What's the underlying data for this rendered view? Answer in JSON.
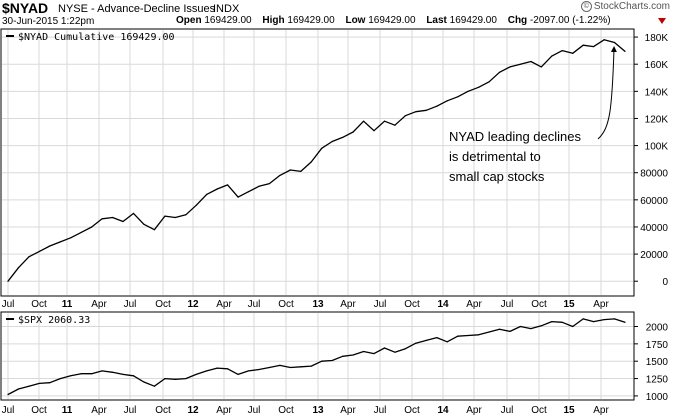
{
  "header": {
    "symbol": "$NYAD",
    "name": "NYSE - Advance-Decline Issues",
    "exchange": "INDX",
    "brand": "StockCharts.com",
    "date": "30-Jun-2015 1:22pm",
    "open_label": "Open",
    "open": "169429.00",
    "high_label": "High",
    "high": "169429.00",
    "low_label": "Low",
    "low": "169429.00",
    "last_label": "Last",
    "last": "169429.00",
    "chg_label": "Chg",
    "chg": "-2097.00 (-1.22%)",
    "chg_color": "#c00000"
  },
  "chart_data": [
    {
      "type": "line",
      "legend": "$NYAD Cumulative 169429.00",
      "x": [
        "Jul 2010",
        "Aug",
        "Sep",
        "Oct",
        "Nov",
        "Dec",
        "Jan 2011",
        "Feb",
        "Mar",
        "Apr",
        "May",
        "Jun",
        "Jul",
        "Aug",
        "Sep",
        "Oct",
        "Nov",
        "Dec",
        "Jan 2012",
        "Feb",
        "Mar",
        "Apr",
        "May",
        "Jun",
        "Jul",
        "Aug",
        "Sep",
        "Oct",
        "Nov",
        "Dec",
        "Jan 2013",
        "Feb",
        "Mar",
        "Apr",
        "May",
        "Jun",
        "Jul",
        "Aug",
        "Sep",
        "Oct",
        "Nov",
        "Dec",
        "Jan 2014",
        "Feb",
        "Mar",
        "Apr",
        "May",
        "Jun",
        "Jul",
        "Aug",
        "Sep",
        "Oct",
        "Nov",
        "Dec",
        "Jan 2015",
        "Feb",
        "Mar",
        "Apr",
        "May",
        "Jun"
      ],
      "values": [
        0,
        10000,
        18000,
        22000,
        26000,
        29000,
        32000,
        36000,
        40000,
        46000,
        47000,
        44000,
        50000,
        42000,
        38000,
        48000,
        47000,
        49000,
        56000,
        64000,
        68000,
        71000,
        62000,
        66000,
        70000,
        72000,
        78000,
        82000,
        81000,
        88000,
        98000,
        103000,
        106000,
        110000,
        118000,
        111000,
        118000,
        115000,
        122000,
        125000,
        126000,
        129000,
        133000,
        136000,
        140000,
        143000,
        147000,
        154000,
        158000,
        160000,
        162000,
        158000,
        166000,
        170000,
        168000,
        174000,
        173000,
        178000,
        176000,
        169429
      ],
      "y_ticks": [
        "0",
        "20000",
        "40000",
        "60000",
        "80000",
        "100K",
        "120K",
        "140K",
        "160K",
        "180K"
      ],
      "ylim": [
        -5000,
        183000
      ],
      "annotation": [
        "NYAD leading declines",
        "is detrimental to",
        "small cap stocks"
      ],
      "line_color": "#000000"
    },
    {
      "type": "line",
      "legend": "$SPX 2060.33",
      "x": [
        "Jul 2010",
        "Aug",
        "Sep",
        "Oct",
        "Nov",
        "Dec",
        "Jan 2011",
        "Feb",
        "Mar",
        "Apr",
        "May",
        "Jun",
        "Jul",
        "Aug",
        "Sep",
        "Oct",
        "Nov",
        "Dec",
        "Jan 2012",
        "Feb",
        "Mar",
        "Apr",
        "May",
        "Jun",
        "Jul",
        "Aug",
        "Sep",
        "Oct",
        "Nov",
        "Dec",
        "Jan 2013",
        "Feb",
        "Mar",
        "Apr",
        "May",
        "Jun",
        "Jul",
        "Aug",
        "Sep",
        "Oct",
        "Nov",
        "Dec",
        "Jan 2014",
        "Feb",
        "Mar",
        "Apr",
        "May",
        "Jun",
        "Jul",
        "Aug",
        "Sep",
        "Oct",
        "Nov",
        "Dec",
        "Jan 2015",
        "Feb",
        "Mar",
        "Apr",
        "May",
        "Jun"
      ],
      "values": [
        1020,
        1100,
        1140,
        1180,
        1190,
        1250,
        1290,
        1320,
        1320,
        1360,
        1340,
        1310,
        1290,
        1200,
        1140,
        1250,
        1240,
        1250,
        1310,
        1360,
        1400,
        1390,
        1310,
        1360,
        1380,
        1410,
        1440,
        1410,
        1420,
        1430,
        1500,
        1510,
        1570,
        1590,
        1640,
        1610,
        1690,
        1630,
        1680,
        1760,
        1800,
        1840,
        1780,
        1860,
        1870,
        1880,
        1920,
        1960,
        1930,
        2000,
        1970,
        2010,
        2070,
        2060,
        2000,
        2110,
        2070,
        2100,
        2110,
        2060
      ],
      "y_ticks": [
        "1000",
        "1250",
        "1500",
        "1750",
        "2000"
      ],
      "ylim": [
        970,
        2180
      ],
      "line_color": "#000000"
    }
  ],
  "x_axis_labels": [
    "Jul",
    "Oct",
    "11",
    "Apr",
    "Jul",
    "Oct",
    "12",
    "Apr",
    "Jul",
    "Oct",
    "13",
    "Apr",
    "Jul",
    "Oct",
    "14",
    "Apr",
    "Jul",
    "Oct",
    "15",
    "Apr"
  ],
  "x_axis_bold": [
    false,
    false,
    true,
    false,
    false,
    false,
    true,
    false,
    false,
    false,
    true,
    false,
    false,
    false,
    true,
    false,
    false,
    false,
    true,
    false
  ]
}
